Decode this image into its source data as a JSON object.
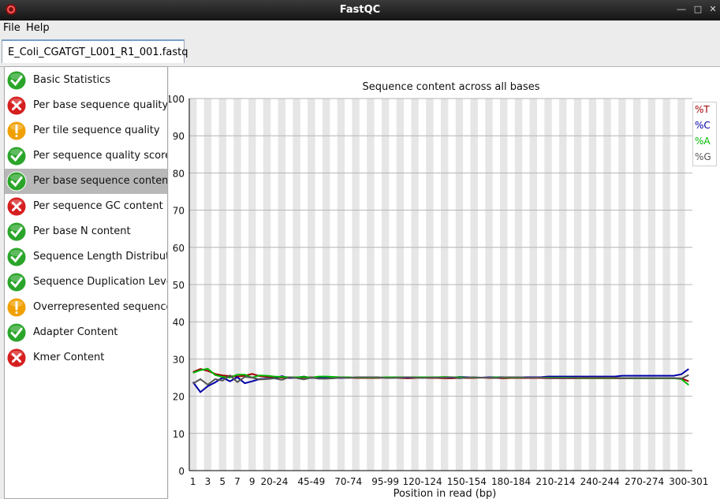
{
  "window": {
    "title": "FastQC"
  },
  "menu": {
    "file": "File",
    "help": "Help"
  },
  "tab": {
    "label": "E_Coli_CGATGT_L001_R1_001.fastq"
  },
  "modules": [
    {
      "label": "Basic Statistics",
      "status": "pass"
    },
    {
      "label": "Per base sequence quality",
      "status": "fail"
    },
    {
      "label": "Per tile sequence quality",
      "status": "warn"
    },
    {
      "label": "Per sequence quality scores",
      "status": "pass"
    },
    {
      "label": "Per base sequence content",
      "status": "pass",
      "selected": true
    },
    {
      "label": "Per sequence GC content",
      "status": "fail"
    },
    {
      "label": "Per base N content",
      "status": "pass"
    },
    {
      "label": "Sequence Length Distribution",
      "status": "pass"
    },
    {
      "label": "Sequence Duplication Levels",
      "status": "pass"
    },
    {
      "label": "Overrepresented sequences",
      "status": "warn"
    },
    {
      "label": "Adapter Content",
      "status": "pass"
    },
    {
      "label": "Kmer Content",
      "status": "fail"
    }
  ],
  "colors": {
    "pass": "#2aa52a",
    "fail": "#d61f1f",
    "warn": "#f0a000",
    "T": "#a00000",
    "C": "#0000a8",
    "A": "#00b800",
    "G": "#555555"
  },
  "chart_data": {
    "type": "line",
    "title": "Sequence content across all bases",
    "xlabel": "Position in read (bp)",
    "ylabel": "",
    "ylim": [
      0,
      100
    ],
    "yticks": [
      0,
      10,
      20,
      30,
      40,
      50,
      60,
      70,
      80,
      90,
      100
    ],
    "x": [
      "1",
      "2",
      "3",
      "4",
      "5",
      "6",
      "7",
      "8",
      "9",
      "10-14",
      "15-19",
      "20-24",
      "25-29",
      "30-34",
      "35-39",
      "40-44",
      "45-49",
      "50-54",
      "55-59",
      "60-64",
      "65-69",
      "70-74",
      "75-79",
      "80-84",
      "85-89",
      "90-94",
      "95-99",
      "100-104",
      "105-109",
      "110-114",
      "115-119",
      "120-124",
      "125-129",
      "130-134",
      "135-139",
      "140-144",
      "145-149",
      "150-154",
      "155-159",
      "160-164",
      "165-169",
      "170-174",
      "175-179",
      "180-184",
      "185-189",
      "190-194",
      "195-199",
      "200-204",
      "205-209",
      "210-214",
      "215-219",
      "220-224",
      "225-229",
      "230-234",
      "235-239",
      "240-244",
      "245-249",
      "250-254",
      "255-259",
      "260-264",
      "265-269",
      "270-274",
      "275-279",
      "280-284",
      "285-289",
      "290-294",
      "295-299",
      "300-301"
    ],
    "xtick_labels": [
      "1",
      "3",
      "5",
      "7",
      "9",
      "20-24",
      "45-49",
      "70-74",
      "95-99",
      "120-124",
      "150-154",
      "180-184",
      "210-214",
      "240-244",
      "270-274",
      "300-301"
    ],
    "legend": [
      "%T",
      "%C",
      "%A",
      "%G"
    ],
    "grid": true,
    "series": [
      {
        "name": "%T",
        "color": "#a00000",
        "values": [
          26.5,
          27.3,
          26.8,
          26.0,
          25.6,
          25.4,
          25.3,
          25.5,
          26.0,
          25.4,
          25.2,
          25.1,
          25.0,
          24.9,
          25.0,
          25.0,
          25.1,
          25.0,
          24.9,
          25.0,
          25.0,
          25.0,
          24.9,
          24.9,
          24.9,
          24.9,
          25.0,
          25.0,
          24.9,
          24.8,
          24.9,
          25.0,
          24.9,
          24.9,
          24.8,
          24.8,
          24.9,
          24.9,
          24.9,
          25.0,
          24.9,
          24.9,
          24.8,
          24.9,
          24.9,
          24.9,
          24.9,
          24.9,
          24.8,
          24.8,
          24.8,
          24.8,
          24.8,
          24.8,
          24.8,
          24.8,
          24.8,
          24.8,
          24.8,
          24.8,
          24.8,
          24.8,
          24.8,
          24.8,
          24.8,
          24.8,
          24.8,
          24.0
        ]
      },
      {
        "name": "%C",
        "color": "#0000a8",
        "values": [
          23.8,
          21.1,
          22.7,
          23.7,
          25.0,
          24.0,
          25.1,
          23.5,
          24.0,
          24.6,
          24.7,
          24.8,
          25.4,
          24.9,
          25.0,
          25.3,
          24.9,
          25.0,
          25.1,
          25.0,
          24.9,
          25.0,
          25.0,
          25.0,
          25.0,
          25.0,
          25.0,
          25.0,
          25.0,
          25.0,
          25.0,
          25.0,
          25.0,
          25.0,
          25.0,
          25.0,
          25.2,
          25.1,
          25.0,
          25.0,
          25.1,
          25.1,
          25.1,
          25.0,
          25.0,
          25.1,
          25.1,
          25.1,
          25.3,
          25.3,
          25.3,
          25.3,
          25.3,
          25.3,
          25.3,
          25.3,
          25.3,
          25.3,
          25.5,
          25.5,
          25.5,
          25.5,
          25.5,
          25.5,
          25.5,
          25.5,
          25.9,
          27.3
        ]
      },
      {
        "name": "%A",
        "color": "#00b800",
        "values": [
          26.3,
          27.0,
          27.4,
          25.7,
          25.2,
          25.0,
          25.8,
          25.8,
          25.0,
          25.6,
          25.5,
          25.3,
          25.2,
          25.1,
          25.1,
          25.2,
          25.0,
          25.3,
          25.3,
          25.2,
          25.1,
          25.1,
          25.0,
          25.0,
          25.0,
          25.0,
          25.1,
          25.1,
          25.1,
          25.1,
          25.1,
          25.1,
          25.1,
          25.1,
          25.2,
          25.1,
          25.1,
          25.0,
          25.0,
          25.0,
          25.0,
          25.1,
          25.0,
          25.0,
          25.0,
          25.0,
          25.0,
          25.0,
          25.0,
          25.0,
          25.0,
          25.0,
          24.9,
          24.9,
          24.9,
          24.9,
          24.9,
          24.9,
          24.9,
          24.8,
          24.8,
          24.8,
          24.8,
          24.8,
          24.8,
          24.8,
          24.6,
          23.0
        ]
      },
      {
        "name": "%G",
        "color": "#555555",
        "values": [
          23.4,
          24.6,
          23.1,
          24.6,
          24.2,
          25.6,
          23.8,
          25.2,
          25.0,
          24.5,
          24.6,
          24.8,
          24.4,
          25.1,
          24.9,
          24.5,
          25.0,
          24.7,
          24.7,
          24.8,
          25.0,
          24.9,
          25.1,
          25.1,
          25.1,
          25.1,
          24.9,
          24.9,
          25.0,
          25.1,
          25.0,
          24.9,
          25.0,
          25.0,
          25.0,
          25.1,
          24.8,
          25.0,
          25.1,
          25.0,
          25.0,
          24.9,
          25.1,
          25.1,
          25.1,
          25.0,
          25.0,
          25.0,
          24.9,
          24.9,
          24.9,
          24.9,
          25.0,
          25.0,
          25.0,
          25.0,
          25.0,
          25.0,
          24.8,
          24.9,
          24.9,
          24.9,
          24.9,
          24.9,
          24.9,
          24.9,
          24.7,
          25.7
        ]
      }
    ]
  }
}
